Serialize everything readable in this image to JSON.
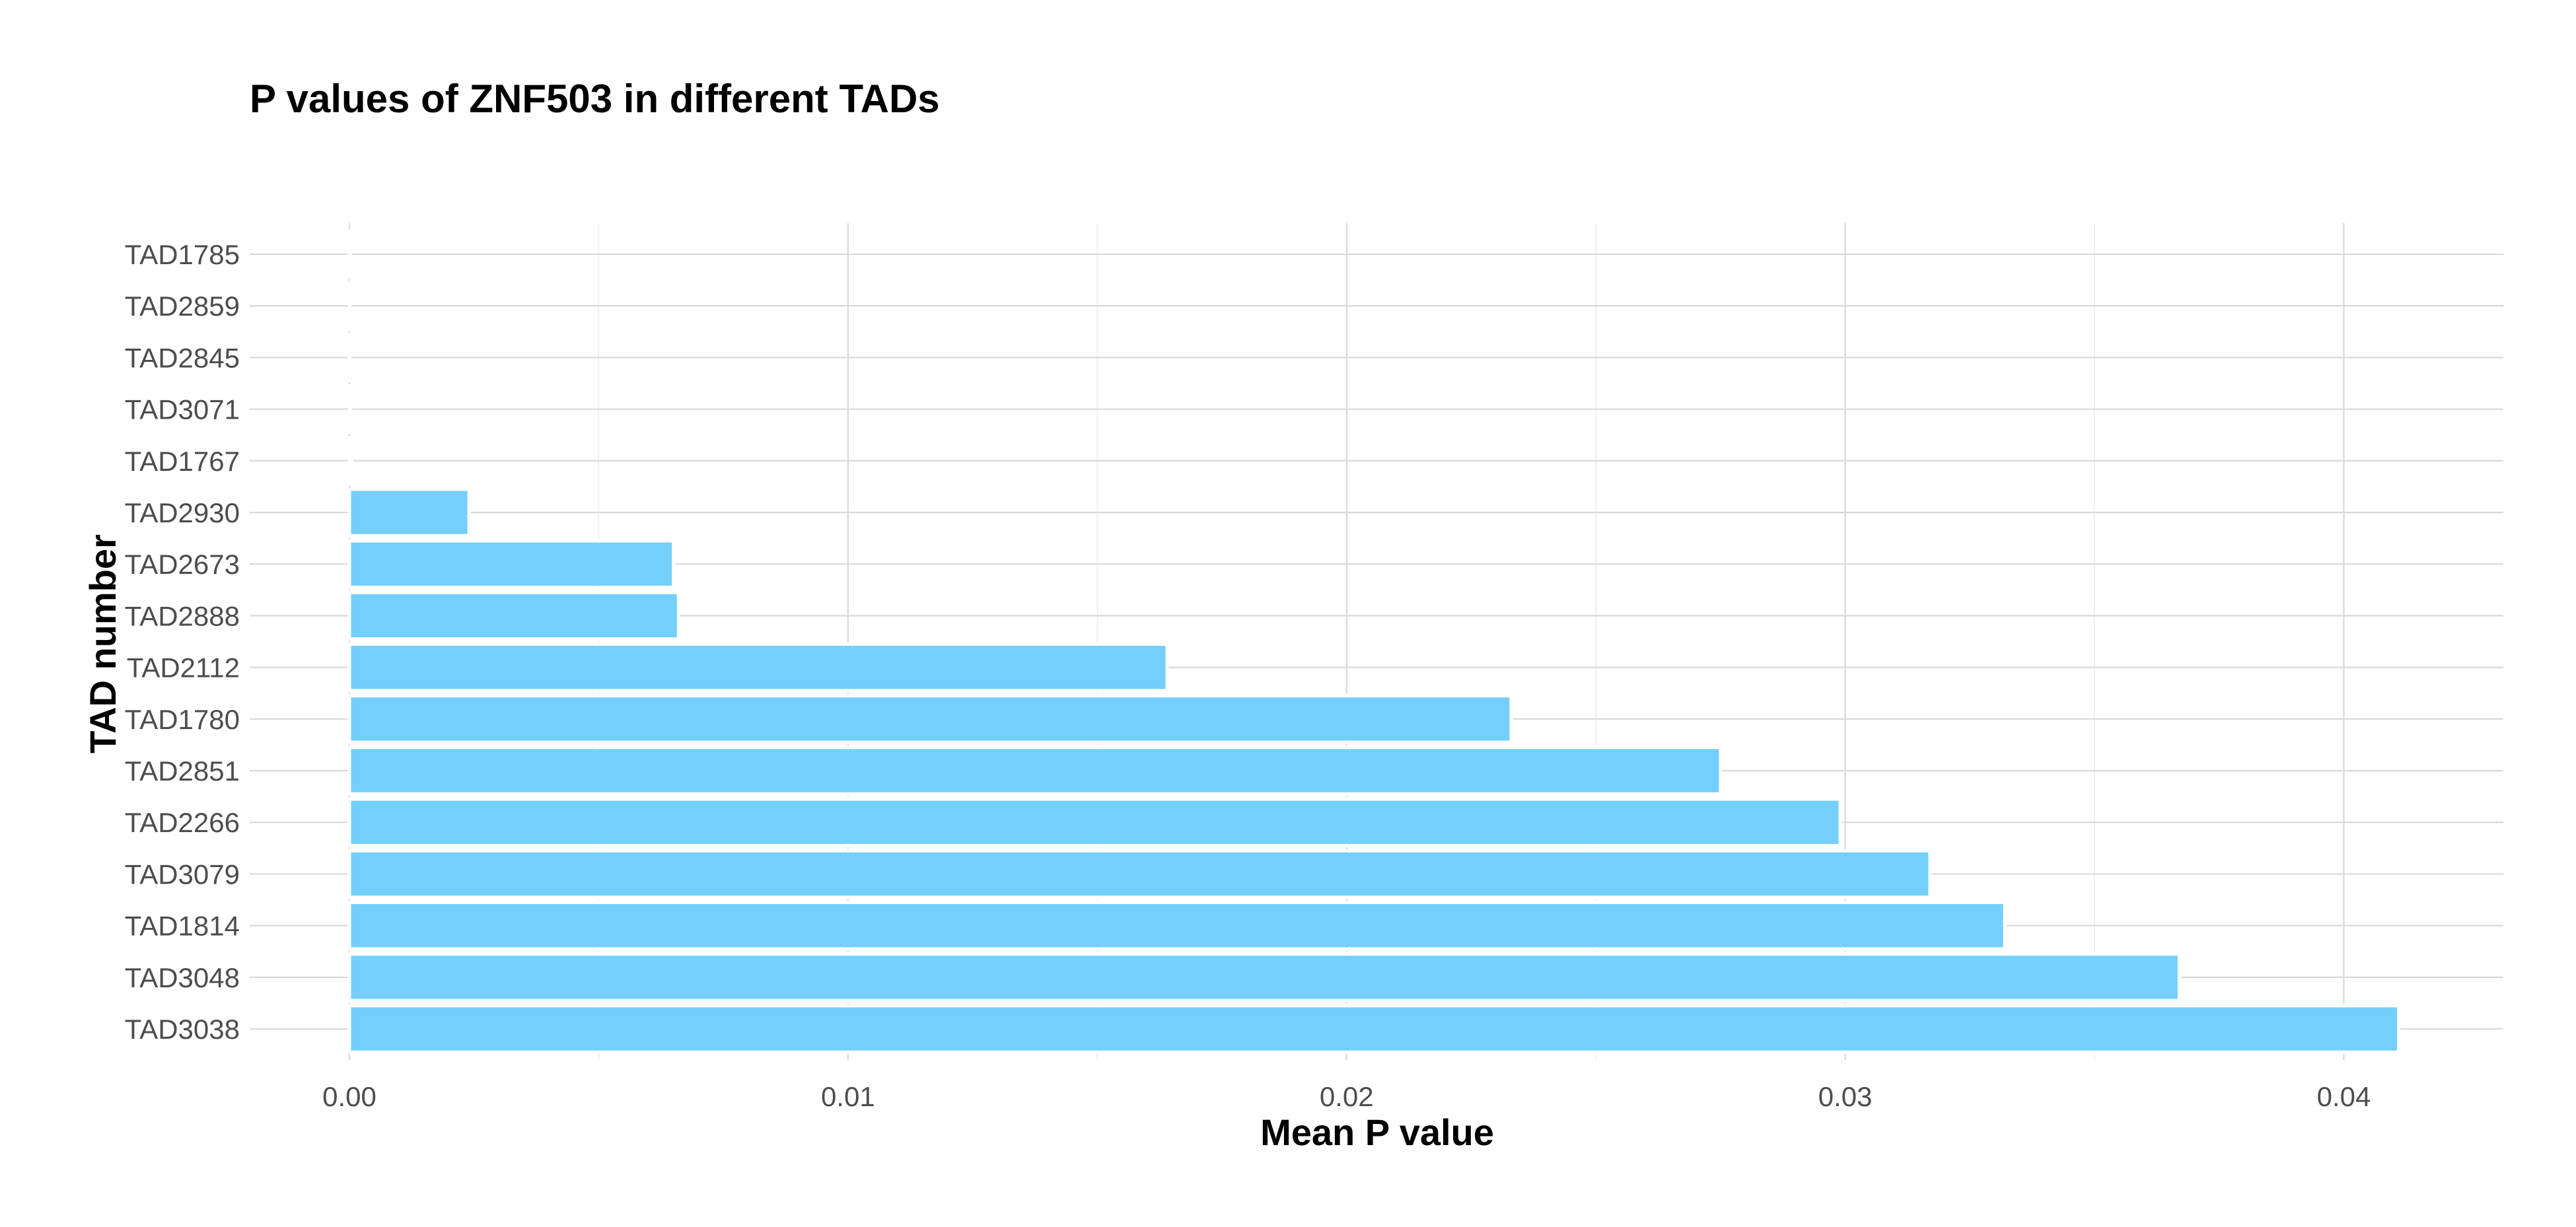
{
  "chart_data": {
    "type": "bar",
    "orientation": "horizontal",
    "title": "P values of ZNF503 in different TADs",
    "xlabel": "Mean P value",
    "ylabel": "TAD number",
    "categories": [
      "TAD3038",
      "TAD3048",
      "TAD1814",
      "TAD3079",
      "TAD2266",
      "TAD2851",
      "TAD1780",
      "TAD2112",
      "TAD2888",
      "TAD2673",
      "TAD2930",
      "TAD1767",
      "TAD3071",
      "TAD2845",
      "TAD2859",
      "TAD1785"
    ],
    "values": [
      0.0411,
      0.0367,
      0.0332,
      0.0317,
      0.0299,
      0.0275,
      0.0233,
      0.0164,
      0.0066,
      0.0065,
      0.0024,
      5e-05,
      2e-05,
      1e-05,
      5e-06,
      1e-06
    ],
    "xlim": [
      -0.002,
      0.0432
    ],
    "xticks": [
      0,
      0.01,
      0.02,
      0.03,
      0.04
    ],
    "xtick_labels": [
      "0.00",
      "0.01",
      "0.02",
      "0.03",
      "0.04"
    ],
    "grid": true,
    "bar_color": "#74CFFB"
  }
}
